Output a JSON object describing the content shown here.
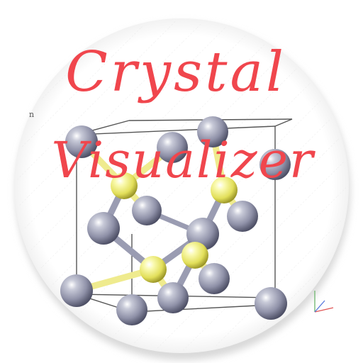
{
  "app": {
    "title_line1": "Crystal",
    "title_line2": "Visualizer",
    "corner_label": "n"
  },
  "icon_names": [
    "crystal-structure-icon",
    "axes-icon"
  ],
  "colors": {
    "background": "#ffffff",
    "title": "#f0464d",
    "grey_atom": "#9a9cb2",
    "yellow_atom": "#f0ee8a",
    "bond_grey": "#9a9cb2",
    "bond_yellow": "#efeb8e",
    "cell_edge": "#555555"
  }
}
